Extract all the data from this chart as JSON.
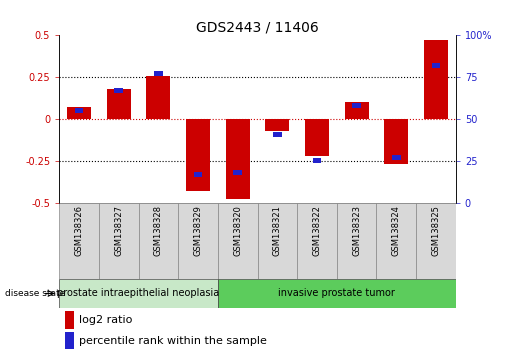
{
  "title": "GDS2443 / 11406",
  "samples": [
    "GSM138326",
    "GSM138327",
    "GSM138328",
    "GSM138329",
    "GSM138320",
    "GSM138321",
    "GSM138322",
    "GSM138323",
    "GSM138324",
    "GSM138325"
  ],
  "log2_ratio": [
    0.07,
    0.18,
    0.26,
    -0.43,
    -0.48,
    -0.07,
    -0.22,
    0.1,
    -0.27,
    0.47
  ],
  "percentile_rank": [
    55,
    67,
    77,
    17,
    18,
    41,
    25,
    58,
    27,
    82
  ],
  "disease_groups": [
    {
      "label": "prostate intraepithelial neoplasia",
      "start": 0,
      "end": 4
    },
    {
      "label": "invasive prostate tumor",
      "start": 4,
      "end": 10
    }
  ],
  "disease_group_colors": [
    "#c8e8c8",
    "#5ccc5c"
  ],
  "ylim": [
    -0.5,
    0.5
  ],
  "yticks_left": [
    -0.5,
    -0.25,
    0.0,
    0.25,
    0.5
  ],
  "yticks_right": [
    0,
    25,
    50,
    75,
    100
  ],
  "bar_color_red": "#cc0000",
  "bar_color_blue": "#2222cc",
  "zero_line_color": "#cc0000",
  "dotted_line_color": "#000000",
  "bg_color": "#ffffff",
  "title_fontsize": 10,
  "tick_fontsize": 7,
  "legend_fontsize": 8,
  "bar_width": 0.6,
  "blue_bar_width": 0.22,
  "blue_bar_height": 0.03
}
